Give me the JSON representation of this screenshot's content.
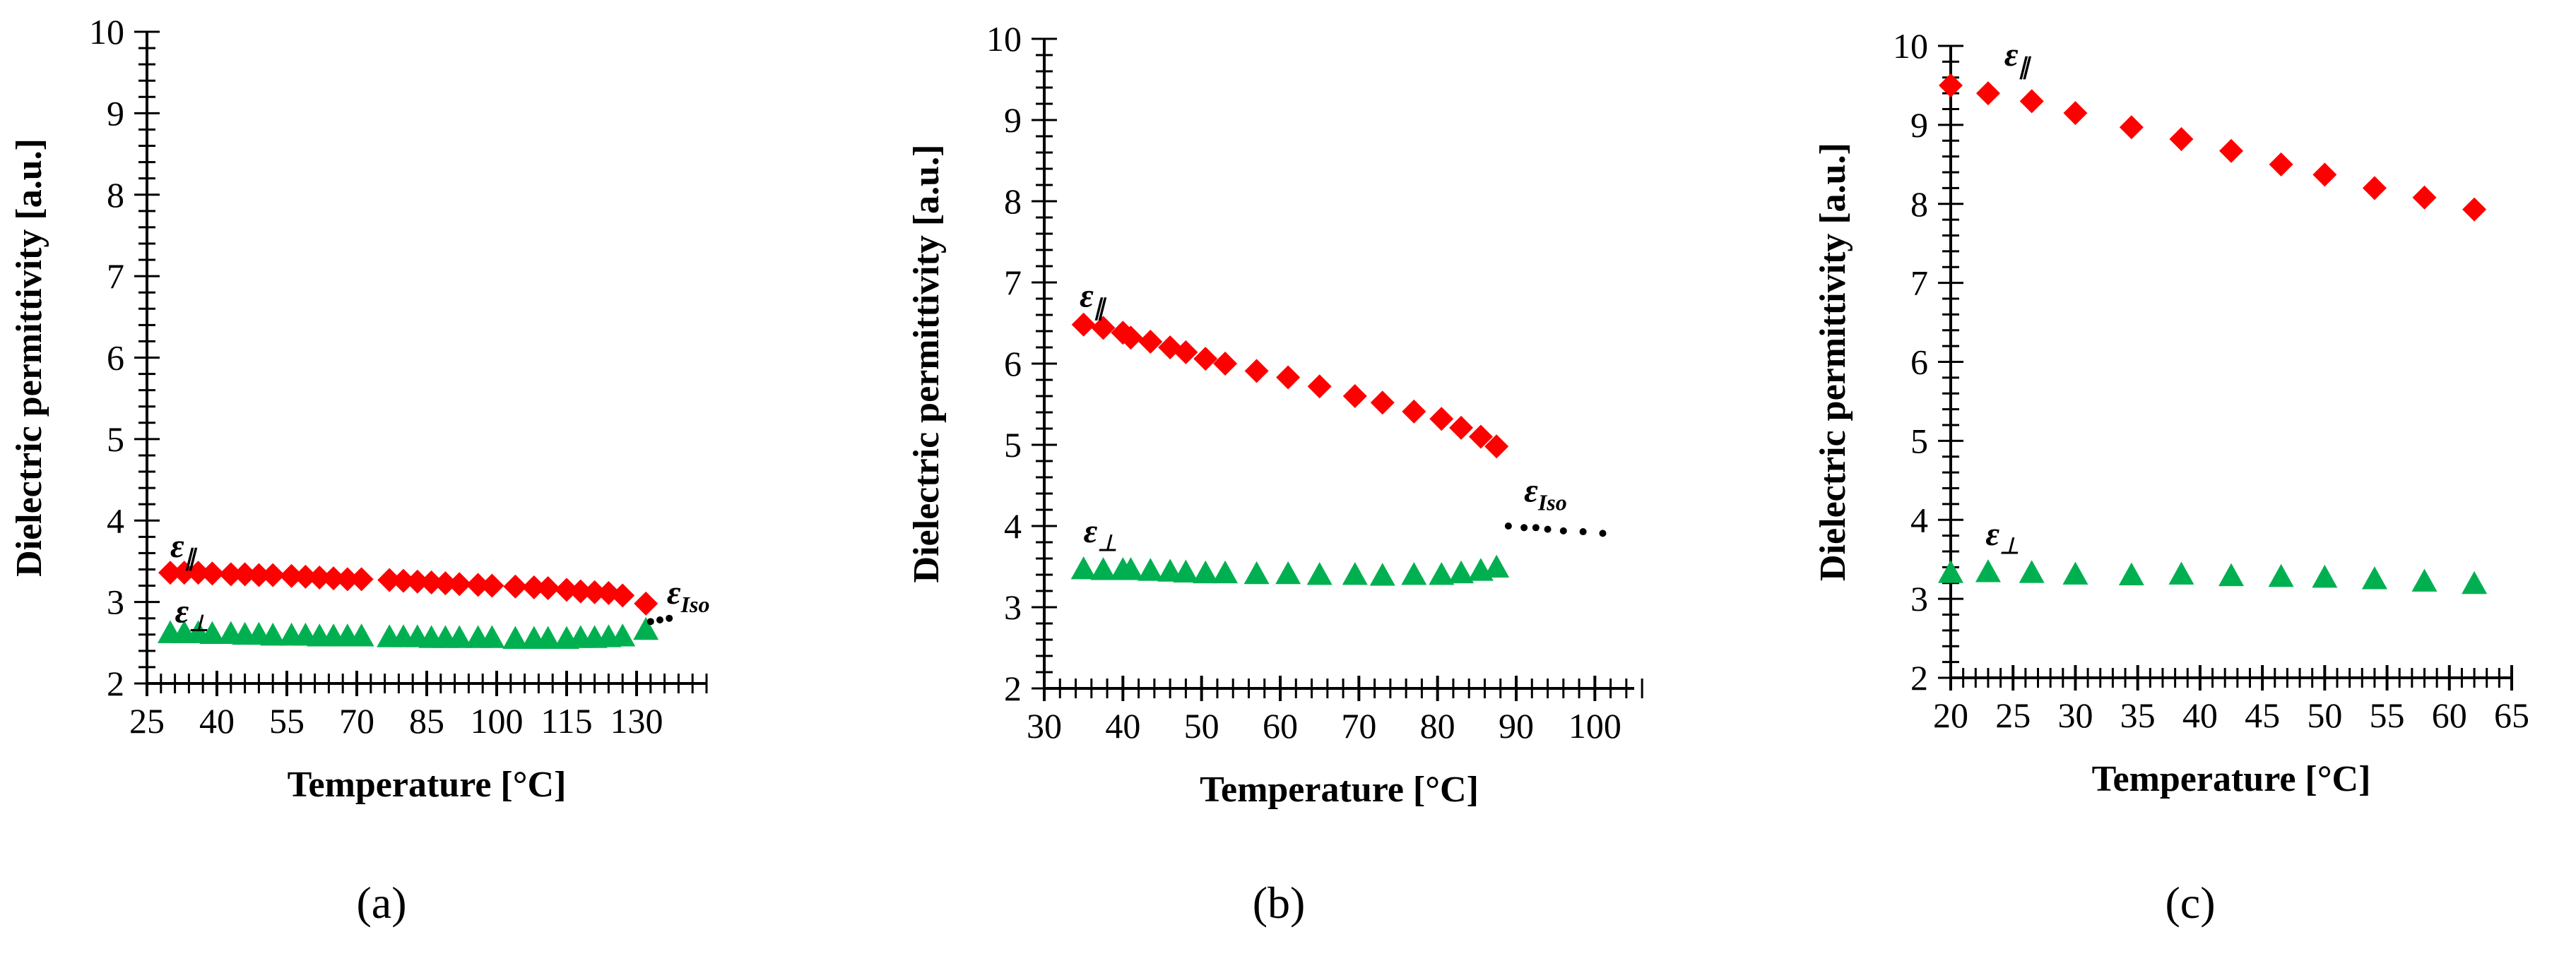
{
  "figure": {
    "panel_labels": [
      "(a)",
      "(b)",
      "(c)"
    ]
  },
  "chart_data": [
    {
      "type": "scatter",
      "panel": "(a)",
      "xlabel": "Temperature [°C]",
      "ylabel": "Dielectric permittivity [a.u.]",
      "xlim": [
        25,
        145
      ],
      "ylim": [
        2,
        10
      ],
      "xticks": [
        25,
        40,
        55,
        70,
        85,
        100,
        115,
        130
      ],
      "yticks": [
        2,
        3,
        4,
        5,
        6,
        7,
        8,
        9,
        10
      ],
      "series": [
        {
          "name": "ε∥",
          "label": "ε",
          "subscript": "∥",
          "marker": "diamond",
          "color": "#ff0000",
          "label_at": [
            30,
            3.55
          ],
          "x": [
            30,
            33,
            36,
            39,
            43,
            46,
            49,
            52,
            56,
            59,
            62,
            65,
            68,
            71,
            77,
            80,
            83,
            86,
            89,
            92,
            96,
            99,
            104,
            108,
            111,
            115,
            118,
            121,
            124,
            127,
            132
          ],
          "y": [
            3.36,
            3.36,
            3.36,
            3.35,
            3.34,
            3.34,
            3.33,
            3.33,
            3.32,
            3.31,
            3.3,
            3.29,
            3.28,
            3.28,
            3.27,
            3.26,
            3.25,
            3.24,
            3.23,
            3.22,
            3.21,
            3.2,
            3.19,
            3.18,
            3.17,
            3.15,
            3.13,
            3.12,
            3.11,
            3.08,
            2.98
          ]
        },
        {
          "name": "ε⊥",
          "label": "ε",
          "subscript": "⊥",
          "marker": "triangle",
          "color": "#00b050",
          "label_at": [
            31,
            2.75
          ],
          "x": [
            30,
            33,
            36,
            39,
            43,
            46,
            49,
            52,
            56,
            59,
            62,
            65,
            68,
            71,
            77,
            80,
            83,
            86,
            89,
            92,
            96,
            99,
            104,
            108,
            111,
            115,
            118,
            121,
            124,
            127,
            132
          ],
          "y": [
            2.62,
            2.62,
            2.62,
            2.61,
            2.61,
            2.6,
            2.6,
            2.59,
            2.59,
            2.59,
            2.58,
            2.58,
            2.58,
            2.58,
            2.57,
            2.57,
            2.57,
            2.56,
            2.56,
            2.56,
            2.56,
            2.56,
            2.55,
            2.55,
            2.55,
            2.55,
            2.56,
            2.56,
            2.57,
            2.58,
            2.66
          ]
        },
        {
          "name": "εIso",
          "label": "ε",
          "subscript": "Iso",
          "marker": "dot",
          "color": "#000000",
          "label_at": [
            136.5,
            2.98
          ],
          "x": [
            133,
            135,
            137
          ],
          "y": [
            2.76,
            2.78,
            2.8
          ]
        }
      ]
    },
    {
      "type": "scatter",
      "panel": "(b)",
      "xlabel": "Temperature [°C]",
      "ylabel": "Dielectric permittivity [a.u.]",
      "xlim": [
        30,
        105
      ],
      "ylim": [
        2,
        10
      ],
      "xticks": [
        30,
        40,
        50,
        60,
        70,
        80,
        90,
        100
      ],
      "yticks": [
        2,
        3,
        4,
        5,
        6,
        7,
        8,
        9,
        10
      ],
      "series": [
        {
          "name": "ε∥",
          "label": "ε",
          "subscript": "∥",
          "marker": "diamond",
          "color": "#ff0000",
          "label_at": [
            34.5,
            6.7
          ],
          "x": [
            35,
            37.5,
            40,
            41,
            43.5,
            46,
            48,
            50.5,
            53,
            57,
            61,
            65,
            69.5,
            73,
            77,
            80.5,
            83,
            85.5,
            87.5
          ],
          "y": [
            6.48,
            6.44,
            6.38,
            6.32,
            6.27,
            6.2,
            6.14,
            6.06,
            6.0,
            5.91,
            5.83,
            5.72,
            5.6,
            5.52,
            5.41,
            5.32,
            5.21,
            5.1,
            4.98
          ]
        },
        {
          "name": "ε⊥",
          "label": "ε",
          "subscript": "⊥",
          "marker": "triangle",
          "color": "#00b050",
          "label_at": [
            35,
            3.8
          ],
          "x": [
            35,
            37.5,
            40,
            41,
            43.5,
            46,
            48,
            50.5,
            53,
            57,
            61,
            65,
            69.5,
            73,
            77,
            80.5,
            83,
            85.5,
            87.5
          ],
          "y": [
            3.47,
            3.46,
            3.46,
            3.46,
            3.45,
            3.44,
            3.43,
            3.42,
            3.42,
            3.41,
            3.41,
            3.4,
            3.4,
            3.39,
            3.4,
            3.4,
            3.42,
            3.45,
            3.49
          ]
        },
        {
          "name": "εIso",
          "label": "ε",
          "subscript": "Iso",
          "marker": "dot",
          "color": "#000000",
          "label_at": [
            91,
            4.3
          ],
          "x": [
            89,
            91,
            92.5,
            94,
            96,
            98.5,
            101
          ],
          "y": [
            4.0,
            3.98,
            3.98,
            3.96,
            3.94,
            3.93,
            3.91
          ]
        }
      ]
    },
    {
      "type": "scatter",
      "panel": "(c)",
      "xlabel": "Temperature [°C]",
      "ylabel": "Dielectric permittivity [a.u.]",
      "xlim": [
        20,
        65
      ],
      "ylim": [
        2,
        10
      ],
      "xticks": [
        20,
        25,
        30,
        35,
        40,
        45,
        50,
        55,
        60,
        65
      ],
      "yticks": [
        2,
        3,
        4,
        5,
        6,
        7,
        8,
        9,
        10
      ],
      "series": [
        {
          "name": "ε∥",
          "label": "ε",
          "subscript": "∥",
          "marker": "diamond",
          "color": "#ff0000",
          "label_at": [
            24.3,
            9.75
          ],
          "x": [
            20,
            23,
            26.5,
            30,
            34.5,
            38.5,
            42.5,
            46.5,
            50,
            54,
            58,
            62
          ],
          "y": [
            9.5,
            9.4,
            9.3,
            9.15,
            8.97,
            8.82,
            8.67,
            8.5,
            8.37,
            8.2,
            8.08,
            7.93
          ]
        },
        {
          "name": "ε⊥",
          "label": "ε",
          "subscript": "⊥",
          "marker": "triangle",
          "color": "#00b050",
          "label_at": [
            22.8,
            3.68
          ],
          "x": [
            20,
            23,
            26.5,
            30,
            34.5,
            38.5,
            42.5,
            46.5,
            50,
            54,
            58,
            62
          ],
          "y": [
            3.33,
            3.34,
            3.33,
            3.31,
            3.3,
            3.31,
            3.29,
            3.28,
            3.27,
            3.25,
            3.22,
            3.19
          ]
        }
      ]
    }
  ]
}
